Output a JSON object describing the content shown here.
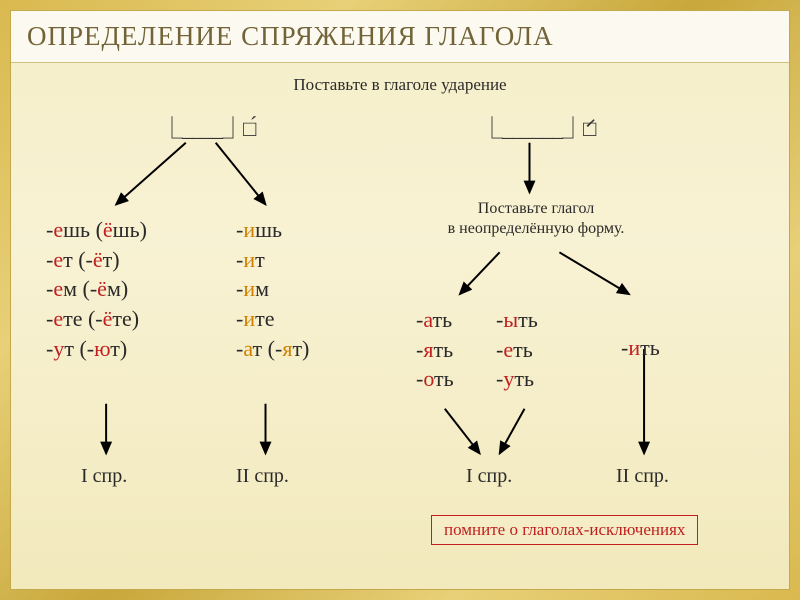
{
  "colors": {
    "gold_frame": "#d9b94f",
    "panel_bg": "#f5eec8",
    "title_bg": "#fcf9f0",
    "title_fg": "#726438",
    "text": "#2a2a2a",
    "red": "#c02020",
    "orange": "#d08000",
    "arrow": "#000000"
  },
  "title": "ОПРЕДЕЛЕНИЕ СПРЯЖЕНИЯ ГЛАГОЛА",
  "subtitle": "Поставьте в глаголе ударение",
  "left_branch": {
    "col1_endings": [
      {
        "pre": "-",
        "hl": "е",
        "post": "шь (",
        "hl2": "ё",
        "post2": "шь)"
      },
      {
        "pre": "-",
        "hl": "е",
        "post": "т (-",
        "hl2": "ё",
        "post2": "т)"
      },
      {
        "pre": "-",
        "hl": "е",
        "post": "м (-",
        "hl2": "ё",
        "post2": "м)"
      },
      {
        "pre": "-",
        "hl": "е",
        "post": "те (-",
        "hl2": "ё",
        "post2": "те)"
      },
      {
        "pre": "-",
        "hl": "у",
        "post": "т (-",
        "hl2": "ю",
        "post2": "т)"
      }
    ],
    "col1_result": "I спр.",
    "col2_endings": [
      {
        "pre": "-",
        "hl": "и",
        "post": "шь"
      },
      {
        "pre": "-",
        "hl": "и",
        "post": "т"
      },
      {
        "pre": "-",
        "hl": "и",
        "post": "м"
      },
      {
        "pre": "-",
        "hl": "и",
        "post": "те"
      },
      {
        "pre": "-",
        "hl": "а",
        "post": "т (-",
        "hl2": "я",
        "post2": "т)"
      }
    ],
    "col2_result": "II спр."
  },
  "right_branch": {
    "instruction_l1": "Поставьте глагол",
    "instruction_l2": "в неопределённую форму.",
    "col1a": [
      {
        "pre": "-",
        "hl": "а",
        "post": "ть"
      },
      {
        "pre": "-",
        "hl": "я",
        "post": "ть"
      },
      {
        "pre": "-",
        "hl": "о",
        "post": "ть"
      }
    ],
    "col1b": [
      {
        "pre": "-",
        "hl": "ы",
        "post": "ть"
      },
      {
        "pre": "-",
        "hl": "е",
        "post": "ть"
      },
      {
        "pre": "-",
        "hl": "у",
        "post": "ть"
      }
    ],
    "col1_result": "I спр.",
    "col2": [
      {
        "pre": "-",
        "hl": "и",
        "post": "ть"
      }
    ],
    "col2_result": "II спр."
  },
  "note": "помните о глаголах-исключениях",
  "stress_glyphs": {
    "left": "⎿____⏌□́",
    "right": "⎿______⏌́□"
  },
  "layout": {
    "title_fontsize": 27,
    "body_fontsize": 22,
    "subinstr_fontsize": 16,
    "line_height": 1.35,
    "arrow_stroke": 2
  }
}
